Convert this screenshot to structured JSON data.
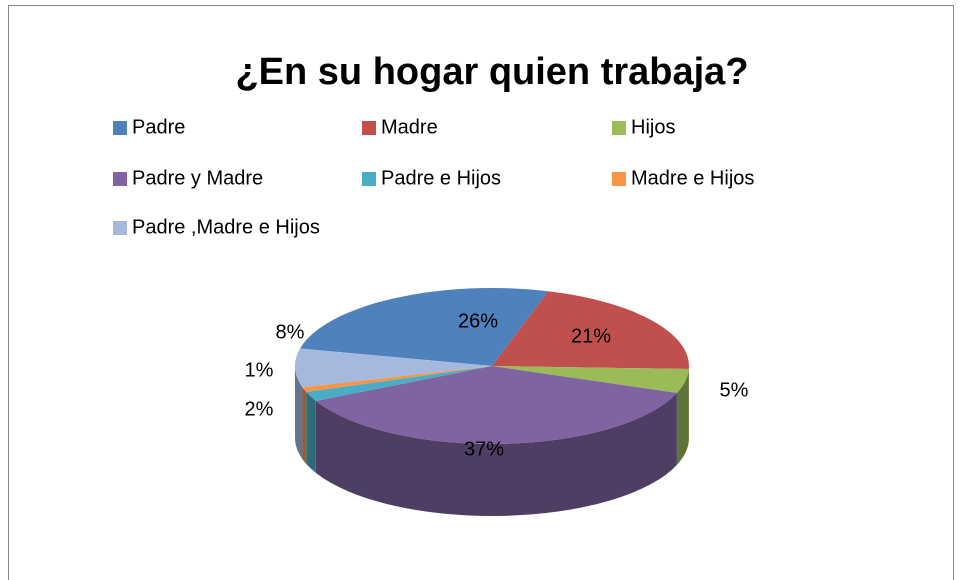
{
  "chart_data": {
    "type": "pie3d",
    "title": "¿En su hogar quien trabaja?",
    "categories": [
      "Padre",
      "Madre",
      "Hijos",
      "Padre y Madre",
      "Padre e Hijos",
      "Madre e Hijos",
      "Padre ,Madre e Hijos"
    ],
    "values": [
      26,
      21,
      5,
      37,
      2,
      1,
      8
    ],
    "value_labels": [
      "26%",
      "21%",
      "5%",
      "37%",
      "2%",
      "1%",
      "8%"
    ],
    "colors": [
      "#4F81BD",
      "#C0504D",
      "#9BBB59",
      "#8064A2",
      "#4BACC6",
      "#F79646",
      "#A5B9DE"
    ],
    "legend": "top"
  }
}
